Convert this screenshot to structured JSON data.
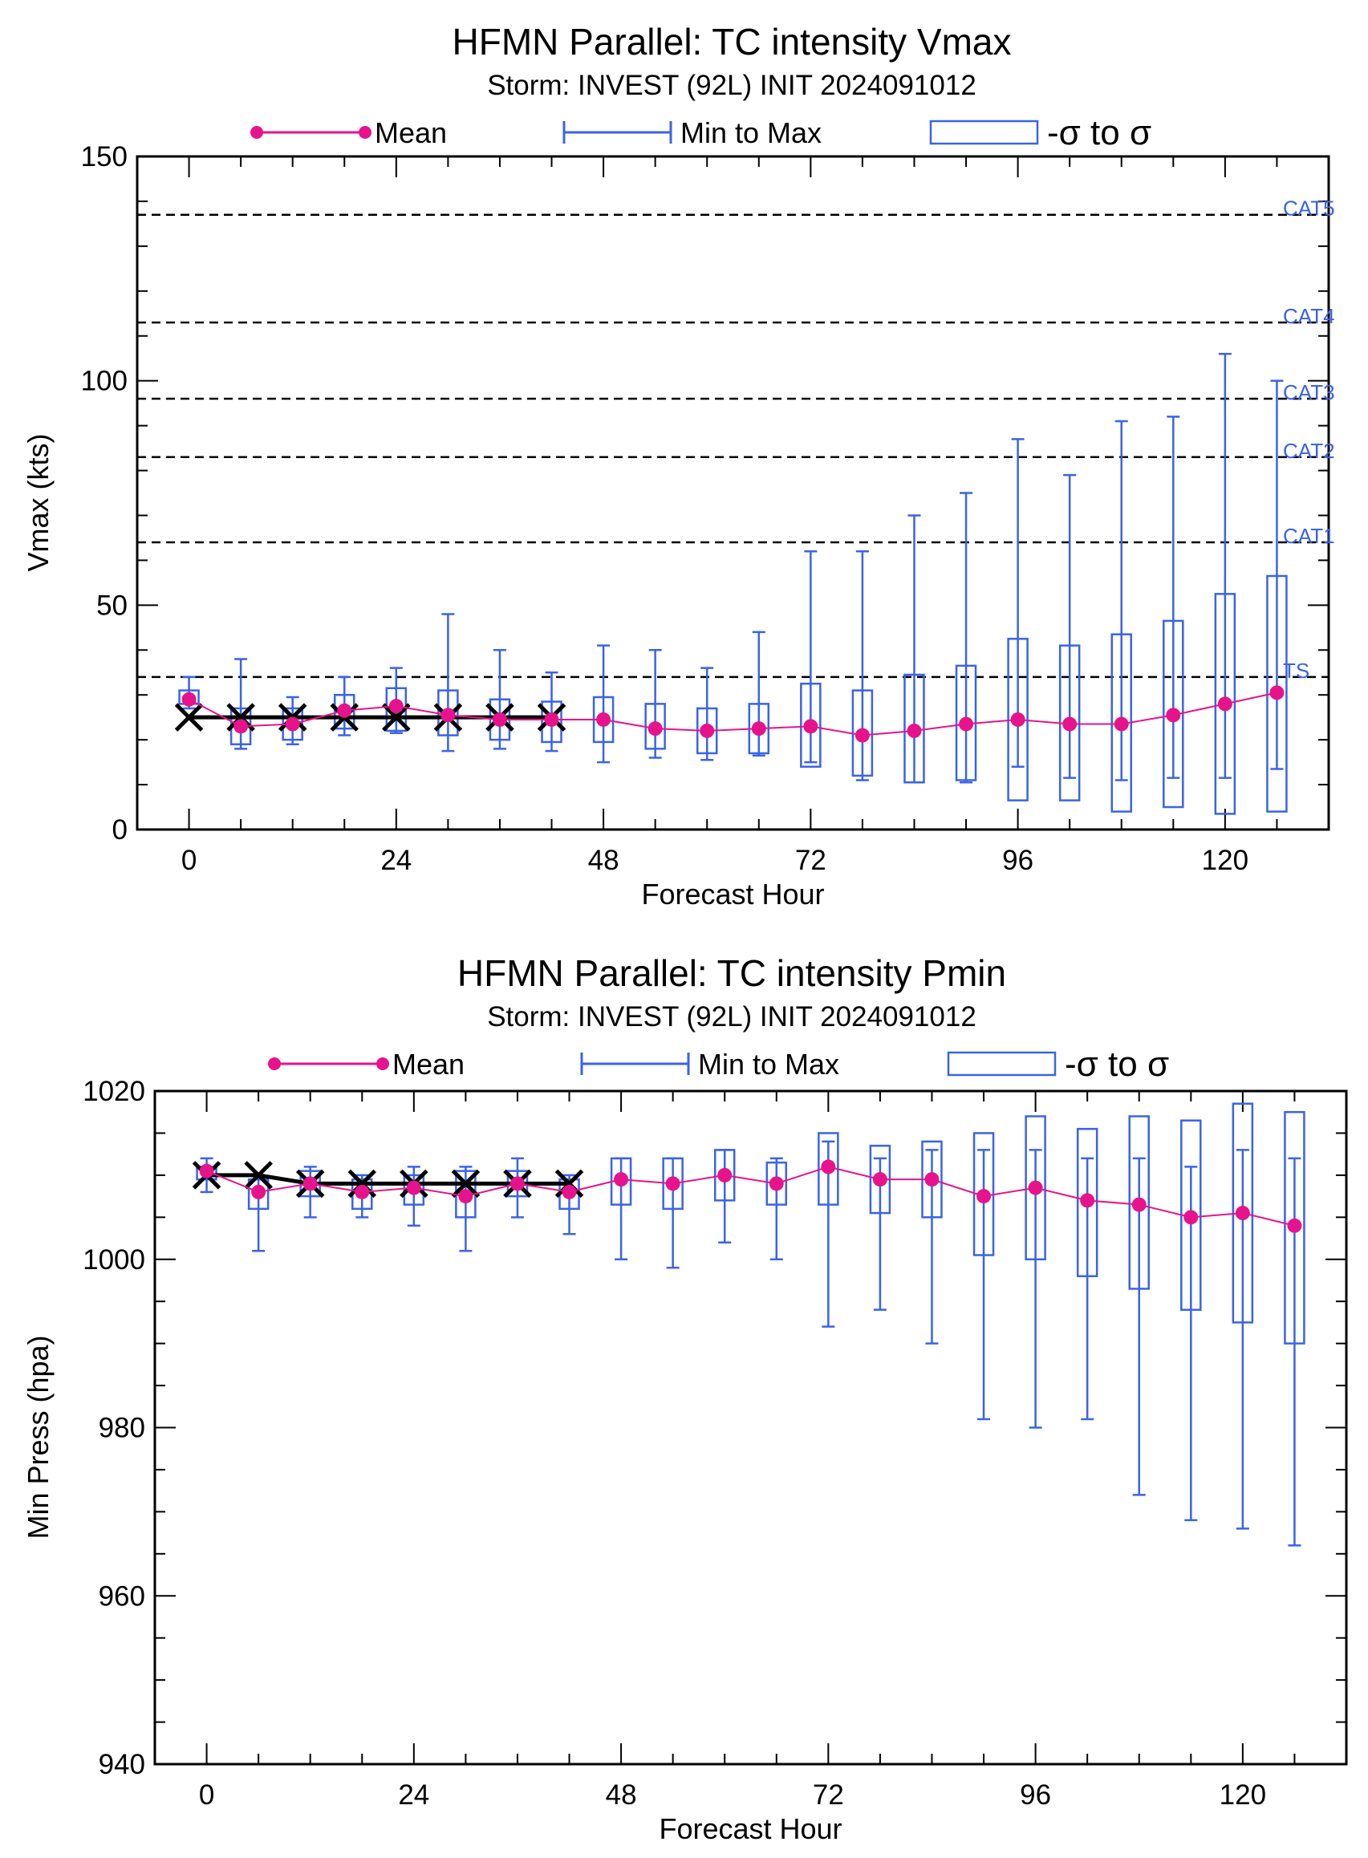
{
  "colors": {
    "mean": "#e6138c",
    "range": "#3a63e8",
    "obs": "#000000",
    "ref": "#000000",
    "axis": "#000000"
  },
  "legend": {
    "mean": "Mean",
    "range": "Min to Max",
    "box": "-σ to σ"
  },
  "chart_data": [
    {
      "type": "box",
      "title": "HFMN Parallel: TC intensity Vmax",
      "subtitle": "Storm: INVEST (92L) INIT 2024091012",
      "xlabel": "Forecast Hour",
      "ylabel": "Vmax (kts)",
      "xlim": [
        -6,
        132
      ],
      "ylim": [
        0,
        150
      ],
      "xticks": [
        0,
        24,
        48,
        72,
        96,
        120
      ],
      "yticks": [
        0,
        50,
        100,
        150
      ],
      "x": [
        0,
        6,
        12,
        18,
        24,
        30,
        36,
        42,
        48,
        54,
        60,
        66,
        72,
        78,
        84,
        90,
        96,
        102,
        108,
        114,
        120,
        126
      ],
      "series": [
        {
          "name": "Mean",
          "values": [
            29,
            23,
            23.5,
            26.5,
            27.5,
            25.5,
            24.5,
            24.5,
            24.5,
            22.5,
            22,
            22.5,
            23,
            21,
            22,
            23.5,
            24.5,
            23.5,
            23.5,
            25.5,
            28,
            30.5
          ]
        },
        {
          "name": "Min",
          "values": [
            27,
            18,
            19,
            21,
            21.5,
            17.5,
            18,
            17.5,
            15,
            16,
            15.5,
            16.5,
            15,
            11,
            10.5,
            10.5,
            14,
            11.5,
            11,
            11.5,
            11.5,
            13.5
          ]
        },
        {
          "name": "Max",
          "values": [
            34,
            38,
            29.5,
            34,
            36,
            48,
            40,
            35,
            41,
            40,
            36,
            44,
            62,
            62,
            70,
            75,
            87,
            79,
            91,
            92,
            106,
            100
          ]
        },
        {
          "name": "-σ",
          "values": [
            28,
            19,
            20,
            22.5,
            22,
            21,
            20,
            19.5,
            19.5,
            18,
            17,
            17,
            14,
            12,
            10.5,
            11,
            6.5,
            6.5,
            4,
            5,
            3.5,
            4
          ]
        },
        {
          "name": "σ",
          "values": [
            31,
            27,
            27,
            30,
            31.5,
            31,
            29,
            28.5,
            29.5,
            28,
            27,
            28,
            32.5,
            31,
            34.5,
            36.5,
            42.5,
            41,
            43.5,
            46.5,
            52.5,
            56.5
          ]
        },
        {
          "name": "Observed",
          "x": [
            0,
            6,
            12,
            18,
            24,
            30,
            36,
            42
          ],
          "values": [
            25,
            25,
            25,
            25,
            25,
            25,
            25,
            25
          ]
        }
      ],
      "reference_lines": [
        {
          "label": "TS",
          "y": 34
        },
        {
          "label": "CAT1",
          "y": 64
        },
        {
          "label": "CAT2",
          "y": 83
        },
        {
          "label": "CAT3",
          "y": 96
        },
        {
          "label": "CAT4",
          "y": 113
        },
        {
          "label": "CAT5",
          "y": 137
        }
      ]
    },
    {
      "type": "box",
      "title": "HFMN Parallel: TC intensity Pmin",
      "subtitle": "Storm: INVEST (92L) INIT 2024091012",
      "xlabel": "Forecast Hour",
      "ylabel": "Min Press (hpa)",
      "xlim": [
        -6,
        132
      ],
      "ylim": [
        940,
        1020
      ],
      "xticks": [
        0,
        24,
        48,
        72,
        96,
        120
      ],
      "yticks": [
        940,
        960,
        980,
        1000,
        1020
      ],
      "x": [
        0,
        6,
        12,
        18,
        24,
        30,
        36,
        42,
        48,
        54,
        60,
        66,
        72,
        78,
        84,
        90,
        96,
        102,
        108,
        114,
        120,
        126
      ],
      "series": [
        {
          "name": "Mean",
          "values": [
            1010.5,
            1008,
            1009,
            1008,
            1008.5,
            1007.5,
            1009,
            1008,
            1009.5,
            1009,
            1010,
            1009,
            1011,
            1009.5,
            1009.5,
            1007.5,
            1008.5,
            1007,
            1006.5,
            1005,
            1005.5,
            1004
          ]
        },
        {
          "name": "Min",
          "values": [
            1008,
            1001,
            1005,
            1005,
            1004,
            1001,
            1005,
            1003,
            1000,
            999,
            1002,
            1000,
            992,
            994,
            990,
            981,
            980,
            981,
            972,
            969,
            968,
            966
          ]
        },
        {
          "name": "Max",
          "values": [
            1012,
            1010,
            1011,
            1010,
            1011,
            1011,
            1012,
            1010,
            1012,
            1012,
            1013,
            1012,
            1014,
            1012,
            1013,
            1013,
            1013,
            1012,
            1012,
            1011,
            1013,
            1012
          ]
        },
        {
          "name": "-σ",
          "values": [
            1009.5,
            1006,
            1007.5,
            1006,
            1006.5,
            1005,
            1007.5,
            1006,
            1006.5,
            1006,
            1007,
            1006.5,
            1006.5,
            1005.5,
            1005,
            1000.5,
            1000,
            998,
            996.5,
            994,
            992.5,
            990
          ]
        },
        {
          "name": "σ",
          "values": [
            1011,
            1009.5,
            1010.5,
            1009.5,
            1010,
            1010.5,
            1010.5,
            1009.5,
            1012,
            1012,
            1013,
            1011.5,
            1015,
            1013.5,
            1014,
            1015,
            1017,
            1015.5,
            1017,
            1016.5,
            1018.5,
            1017.5
          ]
        },
        {
          "name": "Observed",
          "x": [
            0,
            6,
            12,
            18,
            24,
            30,
            36,
            42
          ],
          "values": [
            1010,
            1010,
            1009,
            1009,
            1009,
            1009,
            1009,
            1009
          ]
        }
      ],
      "reference_lines": []
    }
  ]
}
